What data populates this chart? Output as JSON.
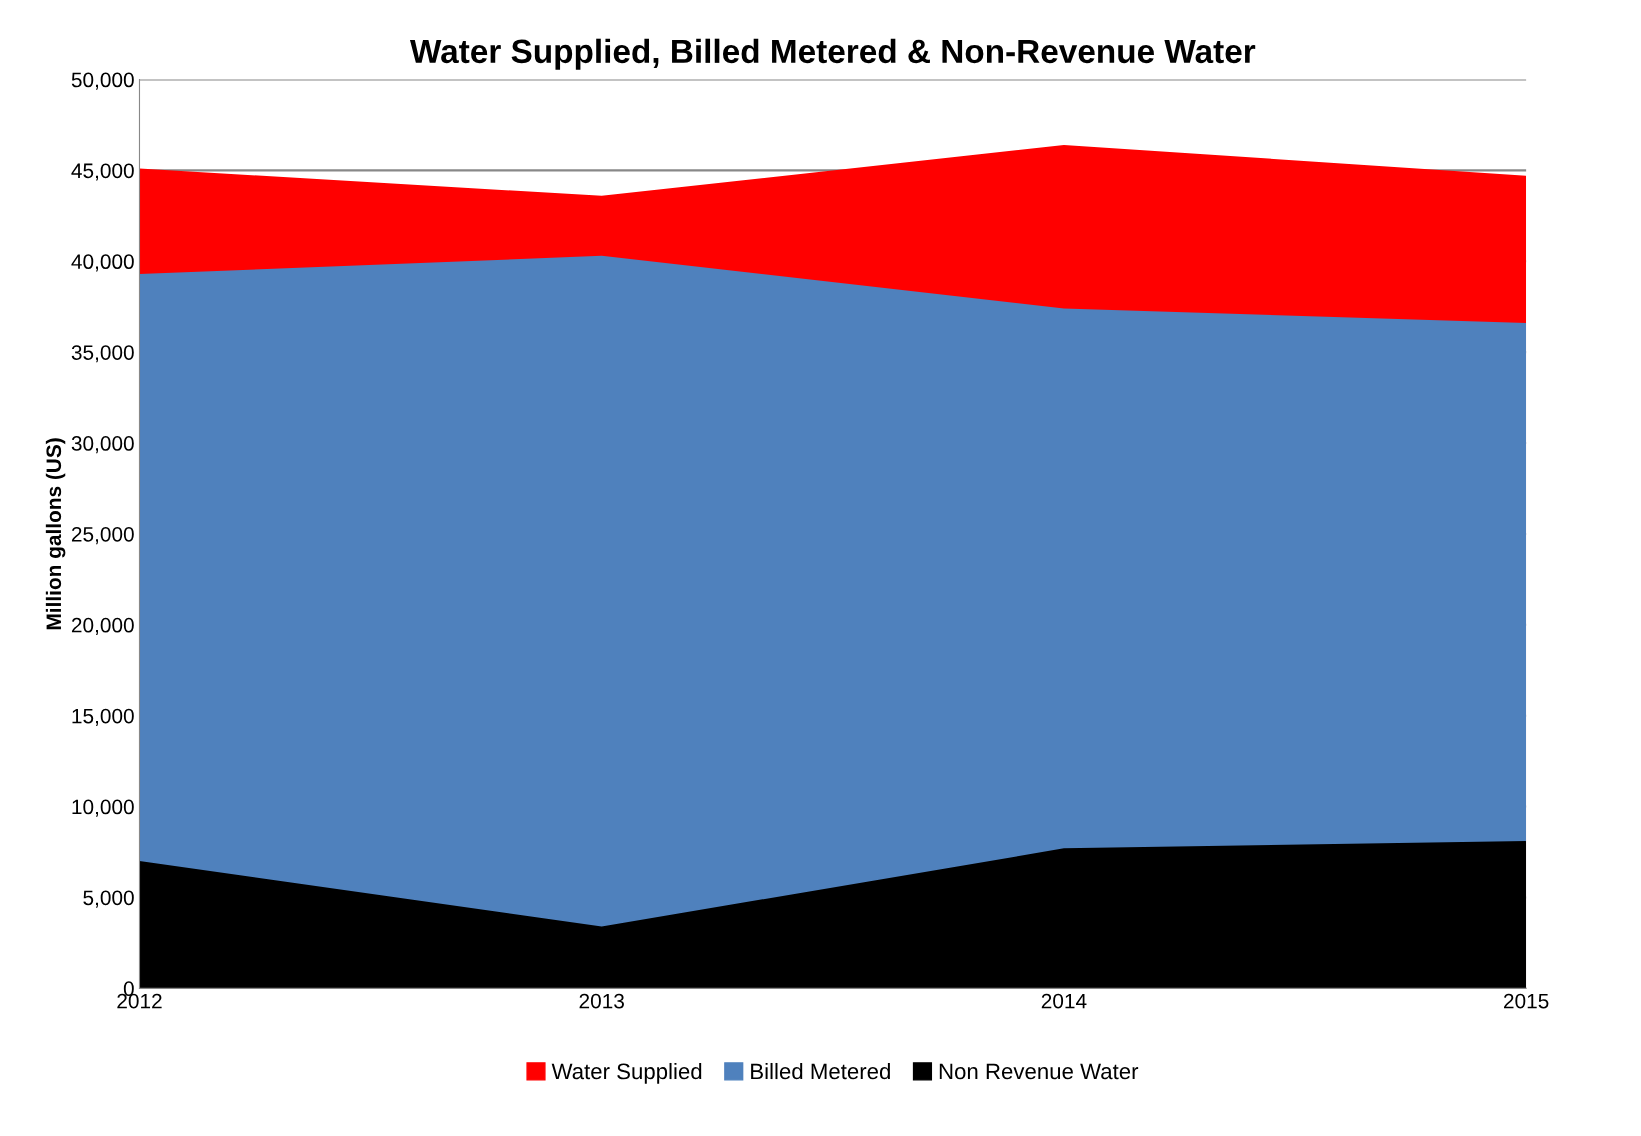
{
  "chart_data": {
    "type": "area",
    "title": "Water Supplied, Billed Metered & Non-Revenue Water",
    "ylabel": "Million gallons (US)",
    "categories": [
      "2012",
      "2013",
      "2014",
      "2015"
    ],
    "series": [
      {
        "name": "Water Supplied",
        "color": "#ff0000",
        "values": [
          45100,
          43600,
          46400,
          44700
        ]
      },
      {
        "name": "Billed Metered",
        "color": "#4f81bd",
        "values": [
          39300,
          40300,
          37400,
          36600
        ]
      },
      {
        "name": "Non Revenue Water",
        "color": "#000000",
        "values": [
          7000,
          3400,
          7700,
          8100
        ]
      }
    ],
    "ylim": [
      0,
      50000
    ],
    "yticks": [
      {
        "value": 0,
        "label": "0"
      },
      {
        "value": 5000,
        "label": "5,000"
      },
      {
        "value": 10000,
        "label": "10,000"
      },
      {
        "value": 15000,
        "label": "15,000"
      },
      {
        "value": 20000,
        "label": "20,000"
      },
      {
        "value": 25000,
        "label": "25,000"
      },
      {
        "value": 30000,
        "label": "30,000"
      },
      {
        "value": 35000,
        "label": "35,000"
      },
      {
        "value": 40000,
        "label": "40,000"
      },
      {
        "value": 45000,
        "label": "45,000"
      },
      {
        "value": 50000,
        "label": "50,000"
      }
    ],
    "grid": "y",
    "legend": "bottom"
  }
}
